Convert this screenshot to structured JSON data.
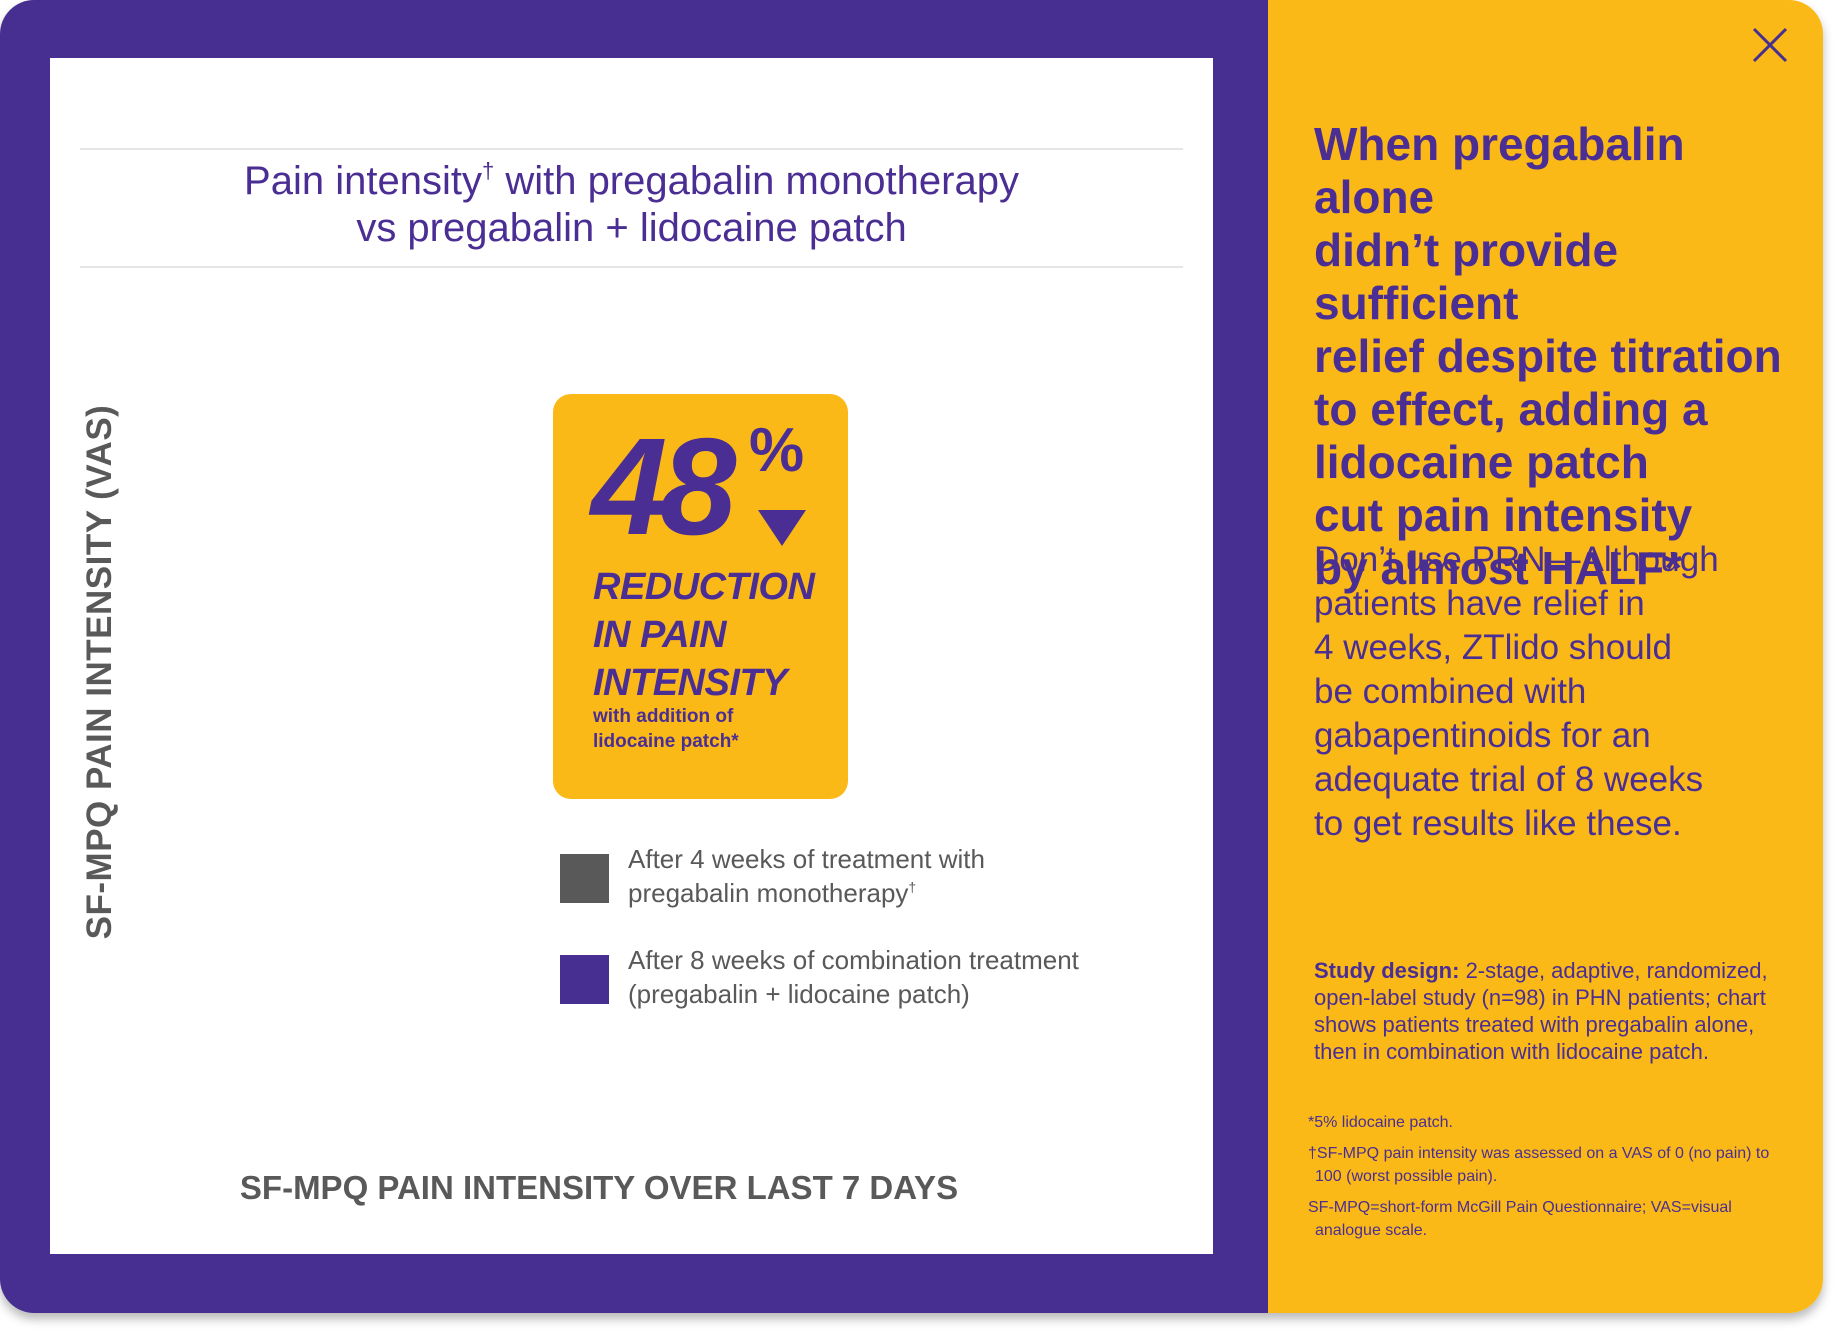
{
  "chart": {
    "title_line1": "Pain intensity",
    "title_dagger": "†",
    "title_line1_rest": " with pregabalin monotherapy",
    "title_line2": "vs pregabalin + lidocaine patch",
    "y_axis_label": "SF-MPQ PAIN INTENSITY (VAS)",
    "x_axis_label": "SF-MPQ PAIN INTENSITY OVER LAST 7 DAYS",
    "callout": {
      "number": "48",
      "percent": "%",
      "line1": "REDUCTION",
      "line2": "IN PAIN",
      "line3": "INTENSITY",
      "sub_line1": "with addition of",
      "sub_line2": "lidocaine patch*"
    },
    "legend": [
      {
        "line1": "After 4 weeks of treatment with",
        "line2": "pregabalin monotherapy",
        "dagger": "†",
        "color": "#595959"
      },
      {
        "line1": "After 8 weeks of combination treatment",
        "line2": "(pregabalin + lidocaine patch)",
        "dagger": "",
        "color": "#472f91"
      }
    ]
  },
  "sidebar": {
    "close_icon": "close-icon",
    "headline_lines": [
      "When pregabalin alone",
      "didn’t provide sufficient",
      "relief despite titration",
      "to effect, adding a",
      "lidocaine patch",
      "cut pain intensity",
      "by almost HALF*"
    ],
    "body_lines": [
      "Don’t use PRN—Although",
      "patients have relief in",
      "4 weeks, ZTlido should",
      "be combined with",
      "gabapentinoids for an",
      "adequate trial of 8 weeks",
      "to get results like these."
    ],
    "study_design_label": "Study design:",
    "study_design_text": " 2-stage, adaptive, randomized, open-label study (n=98) in PHN patients; chart shows patients treated with pregabalin alone, then in combination with lidocaine patch.",
    "footnote1": "*5% lidocaine patch.",
    "footnote2": "†SF-MPQ pain intensity was assessed on a VAS of 0 (no pain) to 100 (worst possible pain).",
    "footnote3": "SF-MPQ=short-form McGill Pain Questionnaire; VAS=visual analogue scale."
  },
  "colors": {
    "purple": "#472f91",
    "gold": "#fbb917",
    "gray": "#595959"
  }
}
